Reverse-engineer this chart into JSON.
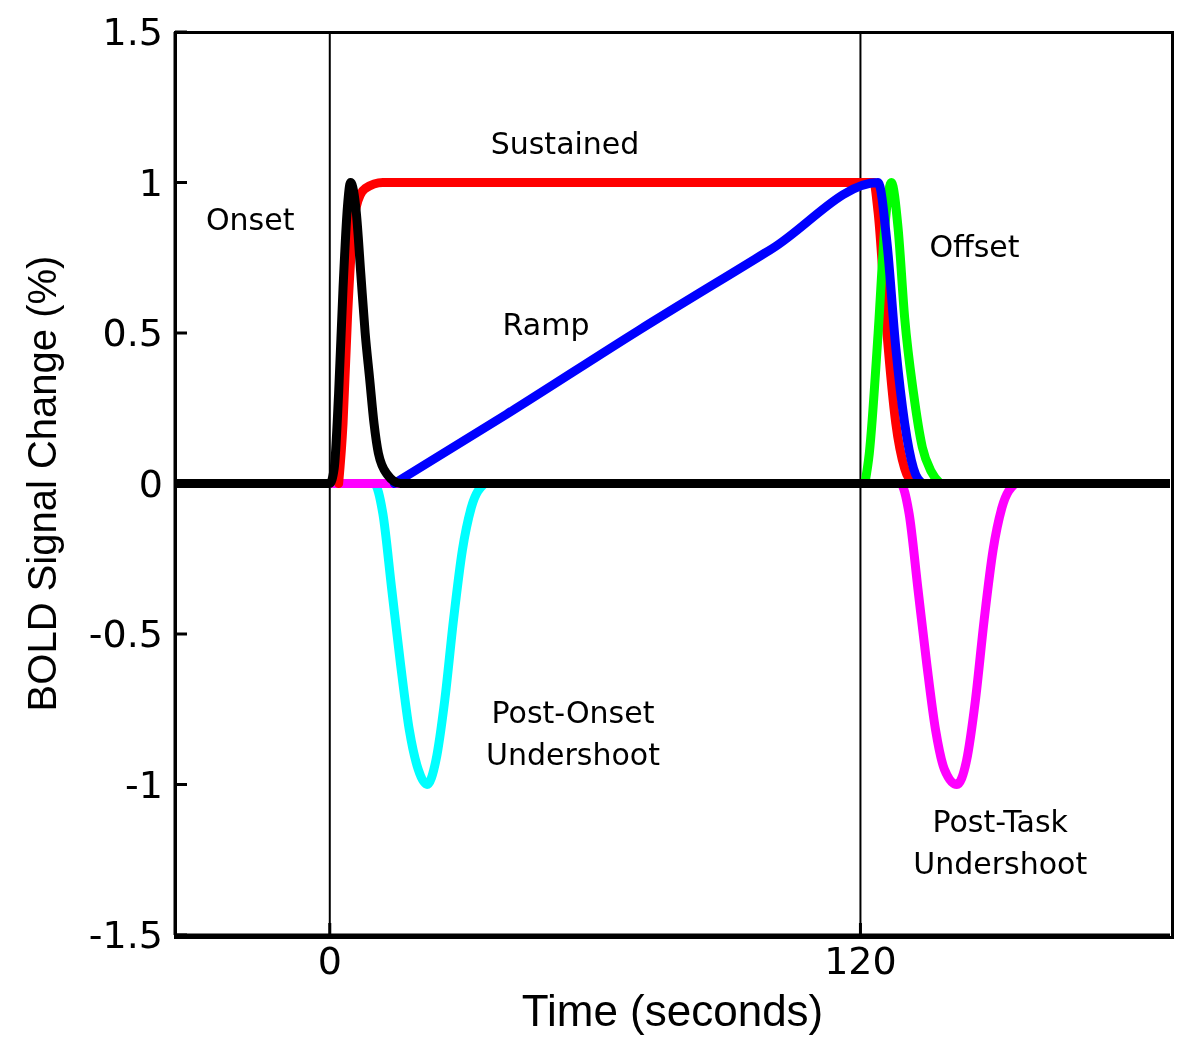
{
  "chart_data": {
    "type": "line",
    "xlabel": "Time (seconds)",
    "ylabel": "BOLD Signal Change (%)",
    "xlim": [
      -35,
      190
    ],
    "xticks": [
      0,
      120
    ],
    "ylim": [
      -1.5,
      1.5
    ],
    "yticks": [
      -1.5,
      -1,
      -0.5,
      0,
      0.5,
      1,
      1.5
    ],
    "grid": false,
    "legend": false,
    "marker": "none",
    "line_style": "solid",
    "ref_lines": [
      {
        "axis": "x",
        "value": 0,
        "color": "#000000"
      },
      {
        "axis": "x",
        "value": 120,
        "color": "#000000"
      }
    ],
    "series": [
      {
        "name": "Post-Onset Undershoot",
        "color": "#00ffff",
        "x": [
          0,
          10,
          12,
          14,
          16,
          18,
          20,
          22,
          24,
          26,
          28,
          30,
          32,
          35
        ],
        "values": [
          0,
          0,
          -0.1,
          -0.35,
          -0.6,
          -0.82,
          -0.95,
          -1,
          -0.92,
          -0.72,
          -0.45,
          -0.22,
          -0.08,
          0
        ]
      },
      {
        "name": "Post-Task Undershoot",
        "color": "#ff00ff",
        "x": [
          0,
          129,
          131,
          133,
          135,
          137,
          139,
          141.8,
          144,
          146,
          148,
          150,
          152,
          155
        ],
        "values": [
          0,
          0,
          -0.1,
          -0.35,
          -0.6,
          -0.82,
          -0.95,
          -1,
          -0.92,
          -0.72,
          -0.45,
          -0.22,
          -0.08,
          0
        ]
      },
      {
        "name": "Sustained",
        "color": "#ff0000",
        "x": [
          2,
          3,
          4,
          5,
          6,
          8,
          12,
          123,
          124,
          126,
          128,
          130,
          132
        ],
        "values": [
          0,
          0.2,
          0.55,
          0.8,
          0.92,
          0.98,
          1,
          1,
          0.9,
          0.5,
          0.2,
          0.05,
          0
        ]
      },
      {
        "name": "Offset",
        "color": "#00ff00",
        "x": [
          121,
          122,
          124,
          125.5,
          127,
          128.5,
          130,
          132,
          134,
          136,
          138
        ],
        "values": [
          0,
          0.1,
          0.5,
          0.85,
          1,
          0.85,
          0.55,
          0.3,
          0.12,
          0.04,
          0
        ]
      },
      {
        "name": "Ramp",
        "color": "#0000ff",
        "x": [
          14.6,
          40,
          70,
          100,
          124,
          126,
          128,
          130,
          132,
          134
        ],
        "values": [
          0,
          0.23,
          0.51,
          0.78,
          1,
          0.8,
          0.45,
          0.2,
          0.05,
          0
        ]
      },
      {
        "name": "Onset",
        "color": "#000000",
        "x": [
          -35,
          0,
          1,
          2,
          3,
          4,
          4.7,
          6,
          7,
          8,
          9,
          10,
          11,
          13,
          16,
          190
        ],
        "values": [
          0,
          0,
          0.05,
          0.3,
          0.65,
          0.92,
          1,
          0.9,
          0.7,
          0.5,
          0.35,
          0.2,
          0.1,
          0.03,
          0,
          0
        ]
      }
    ]
  }
}
